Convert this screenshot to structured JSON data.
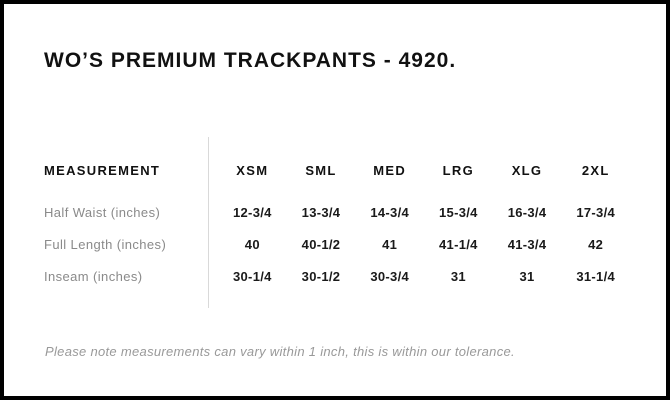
{
  "title": "WO’S PREMIUM TRACKPANTS - 4920.",
  "table": {
    "measurement_header": "MEASUREMENT",
    "size_headers": [
      "XSM",
      "SML",
      "MED",
      "LRG",
      "XLG",
      "2XL"
    ],
    "rows": [
      {
        "label": "Half Waist (inches)",
        "values": [
          "12-3/4",
          "13-3/4",
          "14-3/4",
          "15-3/4",
          "16-3/4",
          "17-3/4"
        ]
      },
      {
        "label": "Full Length (inches)",
        "values": [
          "40",
          "40-1/2",
          "41",
          "41-1/4",
          "41-3/4",
          "42"
        ]
      },
      {
        "label": "Inseam (inches)",
        "values": [
          "30-1/4",
          "30-1/2",
          "30-3/4",
          "31",
          "31",
          "31-1/4"
        ]
      }
    ]
  },
  "footer": {
    "note": "Please note measurements can vary within 1 inch, this is within our tolerance."
  },
  "colors": {
    "background": "#ffffff",
    "frame_border": "#000000",
    "heading_text": "#111111",
    "value_text": "#1a1a1a",
    "row_label_text": "#8a8a8a",
    "column_divider": "#d9d9d9",
    "note_text": "#999999"
  }
}
